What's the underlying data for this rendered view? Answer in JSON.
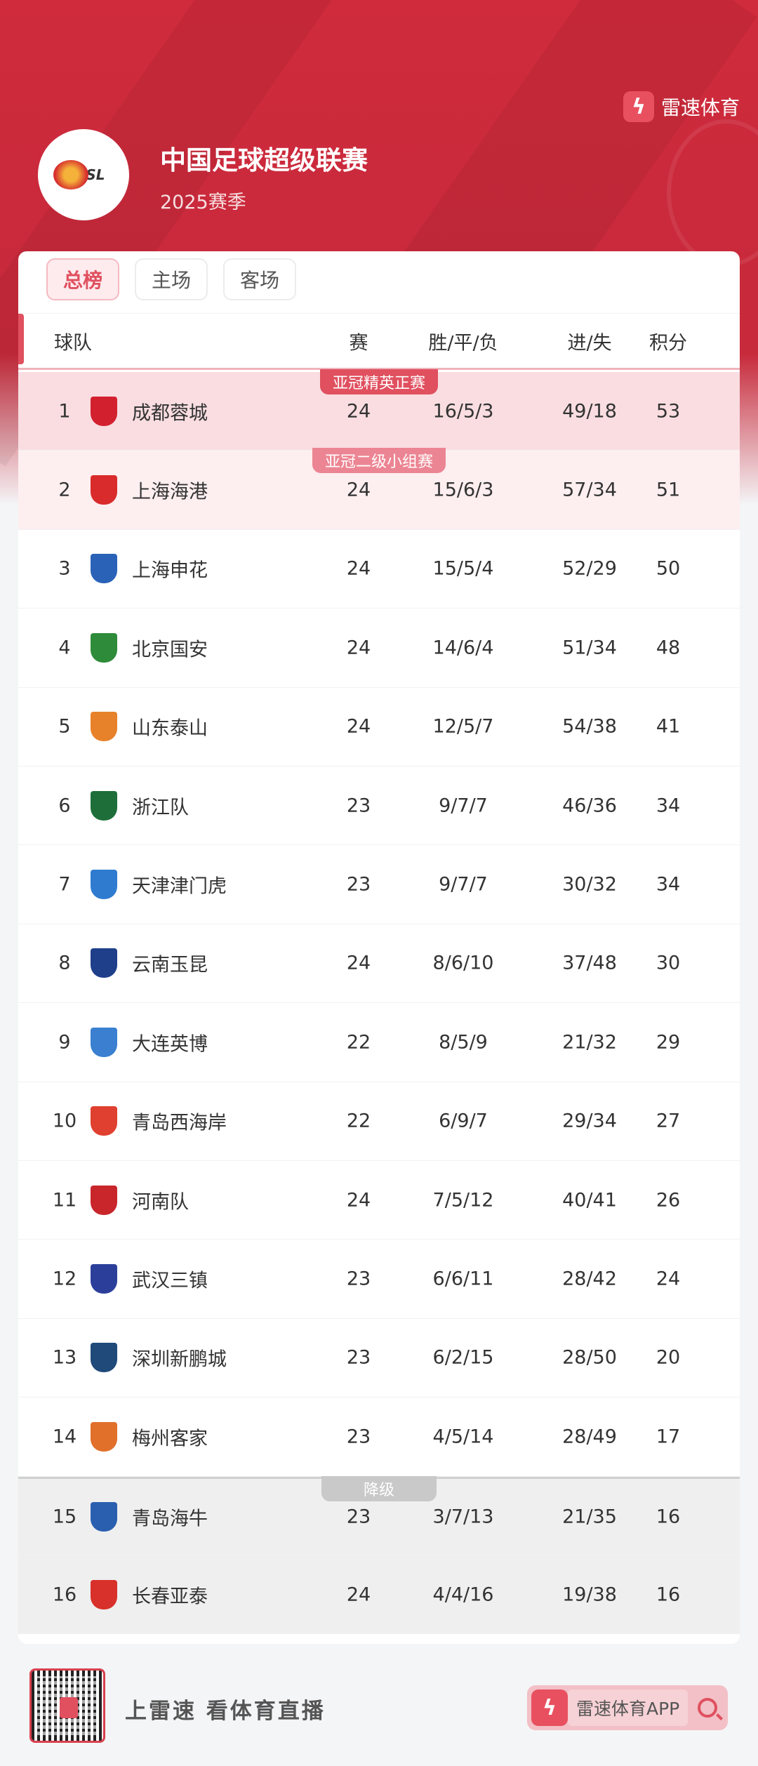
{
  "header": {
    "brand": "雷速体育",
    "league_title": "中国足球超级联赛",
    "season": "2025赛季",
    "logo_text": "CSL"
  },
  "tabs": [
    {
      "label": "总榜",
      "active": true
    },
    {
      "label": "主场",
      "active": false
    },
    {
      "label": "客场",
      "active": false
    }
  ],
  "columns": {
    "team": "球队",
    "played": "赛",
    "wdl": "胜/平/负",
    "goals": "进/失",
    "points": "积分"
  },
  "zones": {
    "acl_elite": "亚冠精英正赛",
    "acl_two": "亚冠二级小组赛",
    "relegation": "降级"
  },
  "colors": {
    "accent": "#e0505f",
    "header_red": "#cf2b3c",
    "acl_elite_row": "#f9dde1",
    "acl_two_row": "#fdeef0",
    "relegation_row": "#efefef"
  },
  "standings": [
    {
      "rank": "1",
      "team": "成都蓉城",
      "played": "24",
      "wdl": "16/5/3",
      "goals": "49/18",
      "points": "53",
      "crest": "#d3202f"
    },
    {
      "rank": "2",
      "team": "上海海港",
      "played": "24",
      "wdl": "15/6/3",
      "goals": "57/34",
      "points": "51",
      "crest": "#d92b2b"
    },
    {
      "rank": "3",
      "team": "上海申花",
      "played": "24",
      "wdl": "15/5/4",
      "goals": "52/29",
      "points": "50",
      "crest": "#2a62b8"
    },
    {
      "rank": "4",
      "team": "北京国安",
      "played": "24",
      "wdl": "14/6/4",
      "goals": "51/34",
      "points": "48",
      "crest": "#2e8b3a"
    },
    {
      "rank": "5",
      "team": "山东泰山",
      "played": "24",
      "wdl": "12/5/7",
      "goals": "54/38",
      "points": "41",
      "crest": "#e8822a"
    },
    {
      "rank": "6",
      "team": "浙江队",
      "played": "23",
      "wdl": "9/7/7",
      "goals": "46/36",
      "points": "34",
      "crest": "#1e6e3a"
    },
    {
      "rank": "7",
      "team": "天津津门虎",
      "played": "23",
      "wdl": "9/7/7",
      "goals": "30/32",
      "points": "34",
      "crest": "#2f7bd0"
    },
    {
      "rank": "8",
      "team": "云南玉昆",
      "played": "24",
      "wdl": "8/6/10",
      "goals": "37/48",
      "points": "30",
      "crest": "#1f3f8a"
    },
    {
      "rank": "9",
      "team": "大连英博",
      "played": "22",
      "wdl": "8/5/9",
      "goals": "21/32",
      "points": "29",
      "crest": "#3a7fd0"
    },
    {
      "rank": "10",
      "team": "青岛西海岸",
      "played": "22",
      "wdl": "6/9/7",
      "goals": "29/34",
      "points": "27",
      "crest": "#e0402f"
    },
    {
      "rank": "11",
      "team": "河南队",
      "played": "24",
      "wdl": "7/5/12",
      "goals": "40/41",
      "points": "26",
      "crest": "#c8262b"
    },
    {
      "rank": "12",
      "team": "武汉三镇",
      "played": "23",
      "wdl": "6/6/11",
      "goals": "28/42",
      "points": "24",
      "crest": "#2b3f9a"
    },
    {
      "rank": "13",
      "team": "深圳新鹏城",
      "played": "23",
      "wdl": "6/2/15",
      "goals": "28/50",
      "points": "20",
      "crest": "#1f4a7a"
    },
    {
      "rank": "14",
      "team": "梅州客家",
      "played": "23",
      "wdl": "4/5/14",
      "goals": "28/49",
      "points": "17",
      "crest": "#e0702a"
    },
    {
      "rank": "15",
      "team": "青岛海牛",
      "played": "23",
      "wdl": "3/7/13",
      "goals": "21/35",
      "points": "16",
      "crest": "#2a5fb0"
    },
    {
      "rank": "16",
      "team": "长春亚泰",
      "played": "24",
      "wdl": "4/4/16",
      "goals": "19/38",
      "points": "16",
      "crest": "#d8302a"
    }
  ],
  "footer": {
    "slogan": "上雷速 看体育直播",
    "app_button": "雷速体育APP"
  }
}
